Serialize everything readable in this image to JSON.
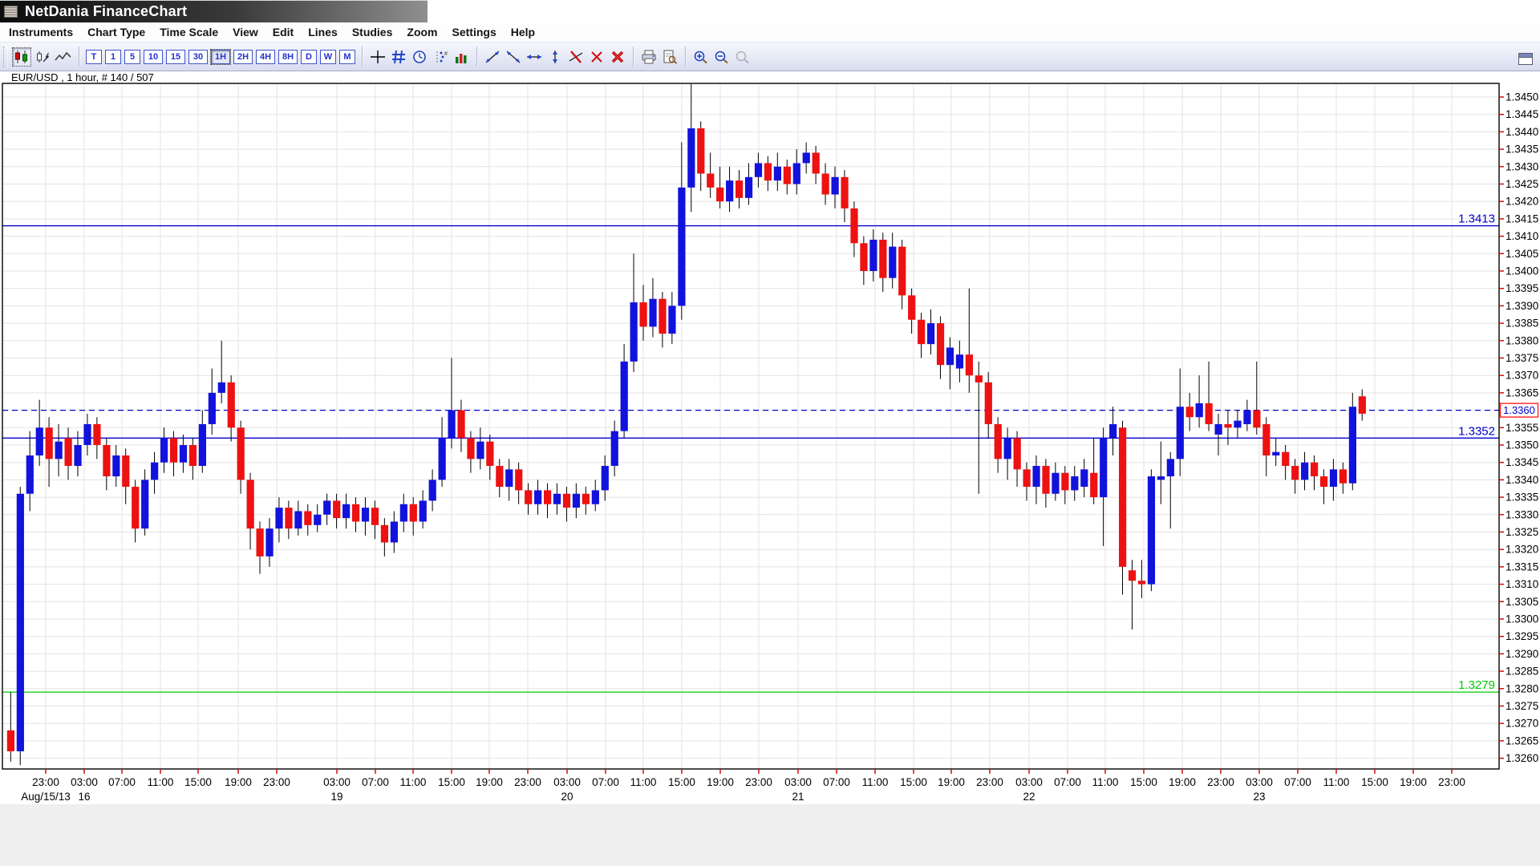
{
  "window": {
    "title": "NetDania FinanceChart"
  },
  "menu": {
    "items": [
      "Instruments",
      "Chart Type",
      "Time Scale",
      "View",
      "Edit",
      "Lines",
      "Studies",
      "Zoom",
      "Settings",
      "Help"
    ]
  },
  "toolbar": {
    "chart_types": [
      {
        "name": "candlestick-chart-button",
        "icon": "candlestick-icon",
        "selected": true
      },
      {
        "name": "ohlc-pointer-button",
        "icon": "bar-pointer-icon",
        "selected": false
      },
      {
        "name": "line-chart-button",
        "icon": "line-chart-icon",
        "selected": false
      }
    ],
    "timeframes": [
      {
        "label": "T"
      },
      {
        "label": "1"
      },
      {
        "label": "5"
      },
      {
        "label": "10"
      },
      {
        "label": "15"
      },
      {
        "label": "30"
      },
      {
        "label": "1H",
        "selected": true
      },
      {
        "label": "2H"
      },
      {
        "label": "4H"
      },
      {
        "label": "8H"
      },
      {
        "label": "D"
      },
      {
        "label": "W"
      },
      {
        "label": "M"
      }
    ],
    "tools": [
      {
        "name": "crosshair-button",
        "icon": "crosshair-icon"
      },
      {
        "name": "grid-button",
        "icon": "grid-icon"
      },
      {
        "name": "alarm-button",
        "icon": "clock-icon"
      },
      {
        "name": "data-labels-button",
        "icon": "data-labels-icon"
      },
      {
        "name": "volume-button",
        "icon": "volume-icon"
      }
    ],
    "line_tools": [
      {
        "name": "trendline-up-button",
        "icon": "trend-up-icon"
      },
      {
        "name": "trendline-down-button",
        "icon": "trend-down-icon"
      },
      {
        "name": "trendline-horizontal-button",
        "icon": "trend-horizontal-icon"
      },
      {
        "name": "trendline-vertical-button",
        "icon": "trend-vertical-icon"
      },
      {
        "name": "remove-line-button",
        "icon": "remove-line-icon"
      },
      {
        "name": "delete-button",
        "icon": "delete-icon"
      },
      {
        "name": "delete-all-button",
        "icon": "delete-all-icon"
      }
    ],
    "print_tools": [
      {
        "name": "print-button",
        "icon": "print-icon"
      },
      {
        "name": "print-preview-button",
        "icon": "print-preview-icon"
      }
    ],
    "zoom_tools": [
      {
        "name": "zoom-in-button",
        "icon": "zoom-in-icon"
      },
      {
        "name": "zoom-out-button",
        "icon": "zoom-out-icon"
      },
      {
        "name": "zoom-reset-button",
        "icon": "zoom-reset-icon",
        "disabled": true
      }
    ]
  },
  "chart": {
    "instrument_label": "EUR/USD , 1 hour, # 140 / 507",
    "price_axis": {
      "max": 1.345,
      "min": 1.326,
      "step": 0.0005,
      "decimals": 4
    },
    "time_axis": {
      "ticks": [
        [
          57,
          "23:00"
        ],
        [
          105,
          "03:00"
        ],
        [
          152,
          "07:00"
        ],
        [
          200,
          "11:00"
        ],
        [
          247,
          "15:00"
        ],
        [
          297,
          "19:00"
        ],
        [
          345,
          "23:00"
        ],
        [
          420,
          "03:00"
        ],
        [
          468,
          "07:00"
        ],
        [
          515,
          "11:00"
        ],
        [
          563,
          "15:00"
        ],
        [
          610,
          "19:00"
        ],
        [
          658,
          "23:00"
        ],
        [
          707,
          "03:00"
        ],
        [
          755,
          "07:00"
        ],
        [
          802,
          "11:00"
        ],
        [
          850,
          "15:00"
        ],
        [
          898,
          "19:00"
        ],
        [
          946,
          "23:00"
        ],
        [
          995,
          "03:00"
        ],
        [
          1043,
          "07:00"
        ],
        [
          1091,
          "11:00"
        ],
        [
          1139,
          "15:00"
        ],
        [
          1186,
          "19:00"
        ],
        [
          1234,
          "23:00"
        ],
        [
          1283,
          "03:00"
        ],
        [
          1331,
          "07:00"
        ],
        [
          1378,
          "11:00"
        ],
        [
          1426,
          "15:00"
        ],
        [
          1474,
          "19:00"
        ],
        [
          1522,
          "23:00"
        ],
        [
          1570,
          "03:00"
        ],
        [
          1618,
          "07:00"
        ],
        [
          1666,
          "11:00"
        ],
        [
          1714,
          "15:00"
        ],
        [
          1762,
          "19:00"
        ],
        [
          1810,
          "23:00"
        ]
      ],
      "dates": [
        [
          57,
          "Aug/15/13"
        ],
        [
          105,
          "16"
        ],
        [
          420,
          "19"
        ],
        [
          707,
          "20"
        ],
        [
          995,
          "21"
        ],
        [
          1283,
          "22"
        ],
        [
          1570,
          "23"
        ]
      ]
    },
    "lines": [
      {
        "price": 1.3413,
        "label": "1.3413",
        "style": "solid",
        "color": "#0000cc",
        "tag": false
      },
      {
        "price": 1.3352,
        "label": "1.3352",
        "style": "solid",
        "color": "#0000cc",
        "tag": false
      },
      {
        "price": 1.3279,
        "label": "1.3279",
        "style": "solid",
        "color": "#00cc00",
        "tag": false
      },
      {
        "price": 1.336,
        "label": "1.3360",
        "style": "dashed",
        "color": "#0000cc",
        "tag": true
      }
    ],
    "colors": {
      "up": "#1212dd",
      "down": "#ee1111",
      "wick": "#000000",
      "grid": "#e3e3e3",
      "axis_tick": "#cc0000",
      "tag_border": "#ff2222",
      "tag_text": "#0000cc"
    }
  },
  "chart_data": {
    "type": "candlestick",
    "symbol": "EUR/USD",
    "interval": "1 hour",
    "title": "EUR/USD , 1 hour, # 140 / 507",
    "ylim": [
      1.326,
      1.345
    ],
    "note": "OHLC values are price times 10000",
    "ohlc": [
      [
        13268,
        13279,
        13259,
        13262
      ],
      [
        13262,
        13338,
        13258,
        13336
      ],
      [
        13336,
        13354,
        13331,
        13347
      ],
      [
        13347,
        13363,
        13344,
        13355
      ],
      [
        13355,
        13358,
        13338,
        13346
      ],
      [
        13346,
        13356,
        13341,
        13351
      ],
      [
        13352,
        13355,
        13340,
        13344
      ],
      [
        13344,
        13354,
        13341,
        13350
      ],
      [
        13350,
        13359,
        13347,
        13356
      ],
      [
        13356,
        13358,
        13346,
        13350
      ],
      [
        13350,
        13352,
        13337,
        13341
      ],
      [
        13341,
        13350,
        13338,
        13347
      ],
      [
        13347,
        13349,
        13333,
        13338
      ],
      [
        13338,
        13340,
        13322,
        13326
      ],
      [
        13326,
        13343,
        13324,
        13340
      ],
      [
        13340,
        13348,
        13336,
        13345
      ],
      [
        13345,
        13355,
        13342,
        13352
      ],
      [
        13352,
        13354,
        13341,
        13345
      ],
      [
        13345,
        13353,
        13342,
        13350
      ],
      [
        13350,
        13352,
        13340,
        13344
      ],
      [
        13344,
        13360,
        13342,
        13356
      ],
      [
        13356,
        13372,
        13353,
        13365
      ],
      [
        13365,
        13380,
        13362,
        13368
      ],
      [
        13368,
        13370,
        13351,
        13355
      ],
      [
        13355,
        13357,
        13336,
        13340
      ],
      [
        13340,
        13342,
        13320,
        13326
      ],
      [
        13326,
        13328,
        13313,
        13318
      ],
      [
        13318,
        13329,
        13315,
        13326
      ],
      [
        13326,
        13335,
        13322,
        13332
      ],
      [
        13332,
        13334,
        13323,
        13326
      ],
      [
        13326,
        13334,
        13324,
        13331
      ],
      [
        13331,
        13333,
        13324,
        13327
      ],
      [
        13327,
        13333,
        13325,
        13330
      ],
      [
        13330,
        13336,
        13327,
        13334
      ],
      [
        13334,
        13336,
        13326,
        13329
      ],
      [
        13329,
        13336,
        13326,
        13333
      ],
      [
        13333,
        13335,
        13325,
        13328
      ],
      [
        13328,
        13335,
        13324,
        13332
      ],
      [
        13332,
        13334,
        13323,
        13327
      ],
      [
        13327,
        13329,
        13318,
        13322
      ],
      [
        13322,
        13331,
        13319,
        13328
      ],
      [
        13328,
        13336,
        13325,
        13333
      ],
      [
        13333,
        13335,
        13324,
        13328
      ],
      [
        13328,
        13337,
        13326,
        13334
      ],
      [
        13334,
        13343,
        13331,
        13340
      ],
      [
        13340,
        13358,
        13338,
        13352
      ],
      [
        13352,
        13375,
        13349,
        13360
      ],
      [
        13360,
        13363,
        13348,
        13352
      ],
      [
        13352,
        13354,
        13342,
        13346
      ],
      [
        13346,
        13355,
        13343,
        13351
      ],
      [
        13351,
        13353,
        13340,
        13344
      ],
      [
        13344,
        13346,
        13335,
        13338
      ],
      [
        13338,
        13346,
        13334,
        13343
      ],
      [
        13343,
        13345,
        13333,
        13337
      ],
      [
        13337,
        13339,
        13330,
        13333
      ],
      [
        13333,
        13340,
        13330,
        13337
      ],
      [
        13337,
        13339,
        13329,
        13333
      ],
      [
        13333,
        13339,
        13330,
        13336
      ],
      [
        13336,
        13338,
        13328,
        13332
      ],
      [
        13332,
        13339,
        13329,
        13336
      ],
      [
        13336,
        13338,
        13330,
        13333
      ],
      [
        13333,
        13340,
        13331,
        13337
      ],
      [
        13337,
        13347,
        13334,
        13344
      ],
      [
        13344,
        13357,
        13341,
        13354
      ],
      [
        13354,
        13379,
        13352,
        13374
      ],
      [
        13374,
        13405,
        13371,
        13391
      ],
      [
        13391,
        13396,
        13380,
        13384
      ],
      [
        13384,
        13398,
        13381,
        13392
      ],
      [
        13392,
        13394,
        13378,
        13382
      ],
      [
        13382,
        13394,
        13379,
        13390
      ],
      [
        13390,
        13437,
        13386,
        13424
      ],
      [
        13424,
        13454,
        13417,
        13441
      ],
      [
        13441,
        13443,
        13423,
        13428
      ],
      [
        13428,
        13434,
        13421,
        13424
      ],
      [
        13424,
        13430,
        13418,
        13420
      ],
      [
        13420,
        13430,
        13417,
        13426
      ],
      [
        13426,
        13429,
        13418,
        13421
      ],
      [
        13421,
        13431,
        13419,
        13427
      ],
      [
        13427,
        13434,
        13424,
        13431
      ],
      [
        13431,
        13433,
        13423,
        13426
      ],
      [
        13426,
        13434,
        13423,
        13430
      ],
      [
        13430,
        13432,
        13422,
        13425
      ],
      [
        13425,
        13435,
        13422,
        13431
      ],
      [
        13431,
        13437,
        13428,
        13434
      ],
      [
        13434,
        13436,
        13425,
        13428
      ],
      [
        13428,
        13431,
        13419,
        13422
      ],
      [
        13422,
        13430,
        13418,
        13427
      ],
      [
        13427,
        13429,
        13414,
        13418
      ],
      [
        13418,
        13420,
        13404,
        13408
      ],
      [
        13408,
        13410,
        13396,
        13400
      ],
      [
        13400,
        13412,
        13397,
        13409
      ],
      [
        13409,
        13411,
        13394,
        13398
      ],
      [
        13398,
        13411,
        13395,
        13407
      ],
      [
        13407,
        13409,
        13389,
        13393
      ],
      [
        13393,
        13395,
        13382,
        13386
      ],
      [
        13386,
        13388,
        13375,
        13379
      ],
      [
        13379,
        13389,
        13376,
        13385
      ],
      [
        13385,
        13387,
        13369,
        13373
      ],
      [
        13373,
        13381,
        13366,
        13378
      ],
      [
        13372,
        13380,
        13368,
        13376
      ],
      [
        13376,
        13395,
        13365,
        13370
      ],
      [
        13370,
        13374,
        13336,
        13368
      ],
      [
        13368,
        13371,
        13352,
        13356
      ],
      [
        13356,
        13358,
        13342,
        13346
      ],
      [
        13346,
        13355,
        13340,
        13352
      ],
      [
        13352,
        13354,
        13338,
        13343
      ],
      [
        13343,
        13345,
        13334,
        13338
      ],
      [
        13338,
        13347,
        13333,
        13344
      ],
      [
        13344,
        13346,
        13332,
        13336
      ],
      [
        13336,
        13345,
        13334,
        13342
      ],
      [
        13342,
        13344,
        13333,
        13337
      ],
      [
        13337,
        13344,
        13334,
        13341
      ],
      [
        13338,
        13346,
        13335,
        13343
      ],
      [
        13342,
        13352,
        13333,
        13335
      ],
      [
        13335,
        13355,
        13321,
        13352
      ],
      [
        13352,
        13361,
        13347,
        13356
      ],
      [
        13355,
        13357,
        13307,
        13315
      ],
      [
        13314,
        13317,
        13297,
        13311
      ],
      [
        13311,
        13317,
        13306,
        13310
      ],
      [
        13310,
        13343,
        13308,
        13341
      ],
      [
        13340,
        13351,
        13333,
        13341
      ],
      [
        13341,
        13348,
        13326,
        13346
      ],
      [
        13346,
        13372,
        13341,
        13361
      ],
      [
        13361,
        13365,
        13354,
        13358
      ],
      [
        13358,
        13370,
        13355,
        13362
      ],
      [
        13362,
        13374,
        13354,
        13356
      ],
      [
        13353,
        13359,
        13347,
        13356
      ],
      [
        13356,
        13360,
        13350,
        13355
      ],
      [
        13355,
        13360,
        13352,
        13357
      ],
      [
        13356,
        13363,
        13354,
        13360
      ],
      [
        13360,
        13374,
        13353,
        13355
      ],
      [
        13356,
        13358,
        13341,
        13347
      ],
      [
        13347,
        13352,
        13344,
        13348
      ],
      [
        13348,
        13350,
        13340,
        13344
      ],
      [
        13344,
        13346,
        13336,
        13340
      ],
      [
        13340,
        13348,
        13337,
        13345
      ],
      [
        13345,
        13347,
        13337,
        13341
      ],
      [
        13341,
        13343,
        13333,
        13338
      ],
      [
        13338,
        13346,
        13334,
        13343
      ],
      [
        13343,
        13345,
        13336,
        13339
      ],
      [
        13339,
        13365,
        13337,
        13361
      ],
      [
        13364,
        13366,
        13357,
        13359
      ]
    ]
  }
}
